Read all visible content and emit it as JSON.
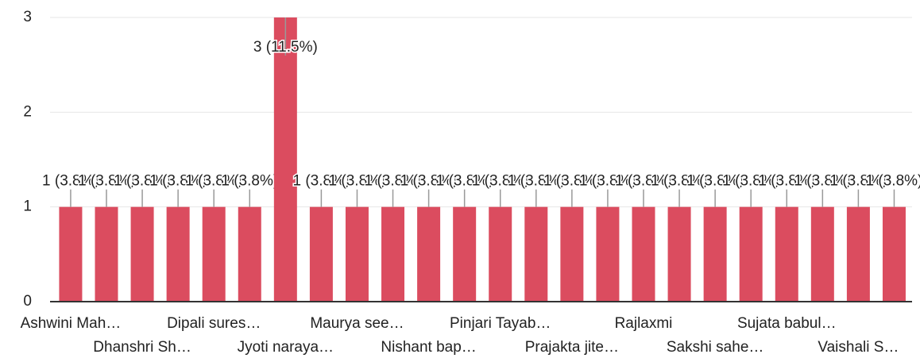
{
  "chart_data": {
    "type": "bar",
    "categories": [
      "Ashwini Mah…",
      null,
      "Dhanshri Sh…",
      null,
      "Dipali sures…",
      null,
      "Jyoti naraya…",
      null,
      "Maurya see…",
      null,
      "Nishant bap…",
      null,
      "Pinjari Tayab…",
      null,
      "Prajakta jite…",
      null,
      "Rajlaxmi",
      null,
      "Sakshi sahe…",
      null,
      "Sujata babul…",
      null,
      "Vaishali S…",
      null
    ],
    "values": [
      1,
      1,
      1,
      1,
      1,
      1,
      3,
      1,
      1,
      1,
      1,
      1,
      1,
      1,
      1,
      1,
      1,
      1,
      1,
      1,
      1,
      1,
      1,
      1
    ],
    "value_labels": [
      "1 (3.8%)",
      "1 (3.8%)",
      "1 (3.8%)",
      "1 (3.8%)",
      "1 (3.8%)",
      "1 (3.8%)",
      "3 (11.5%)",
      "1 (3.8%)",
      "1 (3.8%)",
      "1 (3.8%)",
      "1 (3.8%)",
      "1 (3.8%)",
      "1 (3.8%)",
      "1 (3.8%)",
      "1 (3.8%)",
      "1 (3.8%)",
      "1 (3.8%)",
      "1 (3.8%)",
      "1 (3.8%)",
      "1 (3.8%)",
      "1 (3.8%)",
      "1 (3.8%)",
      "1 (3.8%)",
      "1 (3.8%)"
    ],
    "color": "#db4c5f",
    "ylim": [
      0,
      3
    ],
    "yticks": [
      0,
      1,
      2,
      3
    ],
    "grid": true
  }
}
